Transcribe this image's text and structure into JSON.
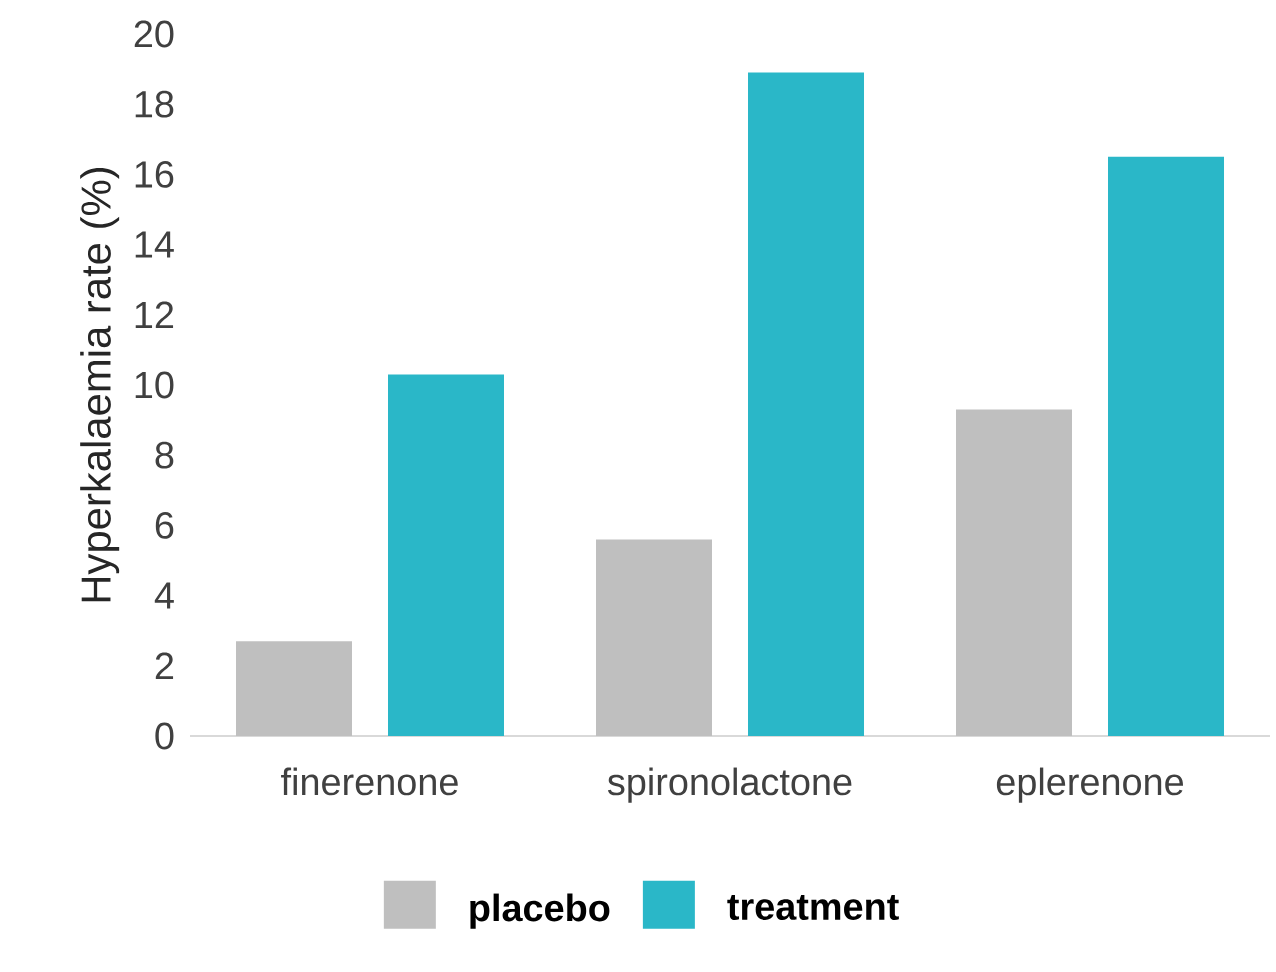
{
  "chart_data": {
    "type": "bar",
    "ylabel": "Hyperkalaemia rate (%)",
    "categories": [
      "finerenone",
      "spironolactone",
      "eplerenone"
    ],
    "series": [
      {
        "name": "placebo",
        "color": "#bfbfbf",
        "values": [
          2.7,
          5.6,
          9.3
        ]
      },
      {
        "name": "treatment",
        "color": "#2ab7c8",
        "values": [
          10.3,
          18.9,
          16.5
        ]
      }
    ],
    "ylim": [
      0,
      20
    ],
    "yticks": [
      0,
      2,
      4,
      6,
      8,
      10,
      12,
      14,
      16,
      18,
      20
    ],
    "legend": "bottom"
  }
}
